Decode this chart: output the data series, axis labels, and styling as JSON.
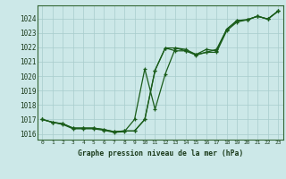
{
  "title": "Graphe pression niveau de la mer (hPa)",
  "bg_color": "#cce8e8",
  "grid_color": "#a8cccc",
  "line_color": "#1a5c1a",
  "marker_color": "#1a5c1a",
  "hours": [
    0,
    1,
    2,
    3,
    4,
    5,
    6,
    7,
    8,
    9,
    10,
    11,
    12,
    13,
    14,
    15,
    16,
    17,
    18,
    19,
    20,
    21,
    22,
    23
  ],
  "series1": [
    1017.0,
    1016.8,
    1016.7,
    1016.4,
    1016.4,
    1016.4,
    1016.3,
    1016.15,
    1016.2,
    1016.2,
    1017.0,
    1020.4,
    1021.95,
    1021.95,
    1021.85,
    1021.5,
    1021.85,
    1021.75,
    1023.25,
    1023.85,
    1023.9,
    1024.15,
    1023.95,
    1024.5
  ],
  "series2": [
    1017.0,
    1016.8,
    1016.7,
    1016.4,
    1016.4,
    1016.4,
    1016.3,
    1016.15,
    1016.2,
    1016.2,
    1017.0,
    1020.4,
    1021.95,
    1021.75,
    1021.75,
    1021.5,
    1021.65,
    1021.65,
    1023.15,
    1023.75,
    1023.9,
    1024.15,
    1023.95,
    1024.5
  ],
  "series3": [
    1017.0,
    1016.8,
    1016.65,
    1016.35,
    1016.35,
    1016.35,
    1016.25,
    1016.1,
    1016.15,
    1017.0,
    1020.5,
    1017.7,
    1020.15,
    1021.95,
    1021.75,
    1021.45,
    1021.65,
    1021.85,
    1023.25,
    1023.85,
    1023.9,
    1024.15,
    1023.95,
    1024.5
  ],
  "ylim_min": 1015.6,
  "ylim_max": 1024.9,
  "yticks": [
    1016,
    1017,
    1018,
    1019,
    1020,
    1021,
    1022,
    1023,
    1024
  ],
  "xticks": [
    0,
    1,
    2,
    3,
    4,
    5,
    6,
    7,
    8,
    9,
    10,
    11,
    12,
    13,
    14,
    15,
    16,
    17,
    18,
    19,
    20,
    21,
    22,
    23
  ],
  "xlabel_fontsize": 5.8,
  "ytick_fontsize": 5.5,
  "xtick_fontsize": 4.5,
  "linewidth": 0.9,
  "markersize": 3.5,
  "spine_color": "#336633"
}
